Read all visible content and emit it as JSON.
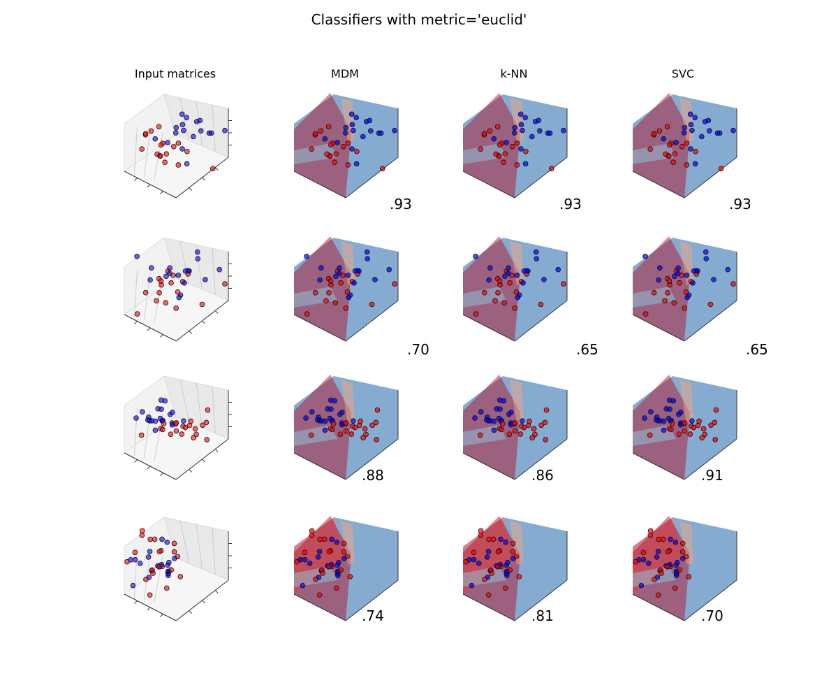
{
  "chart_data": {
    "type": "scatter",
    "title": "Classifiers with metric='euclid'",
    "column_titles": [
      "Input matrices",
      "MDM",
      "k-NN",
      "SVC"
    ],
    "rows": [
      {
        "dataset": 1,
        "scores": [
          ".93",
          ".93",
          ".93"
        ]
      },
      {
        "dataset": 2,
        "scores": [
          ".70",
          ".65",
          ".65"
        ]
      },
      {
        "dataset": 3,
        "scores": [
          ".88",
          ".86",
          ".91"
        ]
      },
      {
        "dataset": 4,
        "scores": [
          ".74",
          ".81",
          ".70"
        ]
      }
    ],
    "class_colors": {
      "class_a": "#ff0000",
      "class_b": "#0000ff"
    },
    "decision_colormap": [
      "#67001f",
      "#b2182b",
      "#f4a582",
      "#f7f7f7",
      "#92c5de",
      "#2166ac",
      "#053061"
    ],
    "grid": true,
    "legend": "none"
  }
}
